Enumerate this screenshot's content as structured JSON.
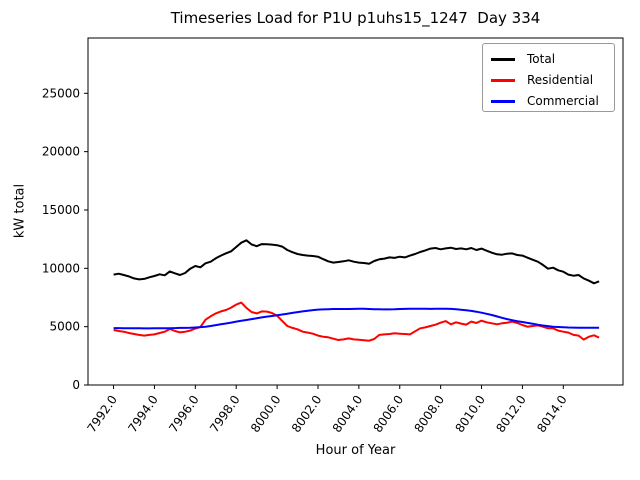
{
  "chart_data": {
    "type": "line",
    "title": "Timeseries Load for P1U p1uhs15_1247  Day 334",
    "xlabel": "Hour of Year",
    "ylabel": "kW total",
    "xlim": [
      7990.75,
      8016.92
    ],
    "ylim": [
      0,
      29740
    ],
    "grid": false,
    "legend_position": "upper right",
    "xtick_labels": [
      "7992.0",
      "7994.0",
      "7996.0",
      "7998.0",
      "8000.0",
      "8002.0",
      "8004.0",
      "8006.0",
      "8008.0",
      "8010.0",
      "8012.0",
      "8014.0"
    ],
    "ytick_labels": [
      "0",
      "5000",
      "10000",
      "15000",
      "20000",
      "25000"
    ],
    "x_start": 7992.0,
    "x_step": 0.25,
    "n_points": 96,
    "series": [
      {
        "name": "Total",
        "color": "#000000",
        "values": [
          9460,
          9540,
          9430,
          9310,
          9140,
          9050,
          9090,
          9230,
          9340,
          9490,
          9400,
          9740,
          9570,
          9430,
          9600,
          9970,
          10200,
          10090,
          10430,
          10570,
          10860,
          11090,
          11290,
          11460,
          11830,
          12200,
          12400,
          12050,
          11900,
          12080,
          12060,
          12030,
          11980,
          11860,
          11570,
          11380,
          11230,
          11140,
          11090,
          11060,
          11000,
          10790,
          10600,
          10490,
          10540,
          10600,
          10690,
          10570,
          10490,
          10460,
          10400,
          10630,
          10770,
          10830,
          10940,
          10890,
          11000,
          10940,
          11090,
          11230,
          11400,
          11540,
          11690,
          11740,
          11630,
          11710,
          11770,
          11660,
          11710,
          11630,
          11740,
          11570,
          11690,
          11510,
          11340,
          11200,
          11170,
          11250,
          11280,
          11140,
          11090,
          10910,
          10740,
          10570,
          10290,
          9970,
          10050,
          9830,
          9710,
          9460,
          9370,
          9430,
          9140,
          8940,
          8720,
          8890
        ]
      },
      {
        "name": "Residential",
        "color": "#ff0000",
        "values": [
          4710,
          4630,
          4570,
          4460,
          4370,
          4290,
          4230,
          4290,
          4340,
          4460,
          4570,
          4800,
          4630,
          4510,
          4570,
          4660,
          4830,
          4970,
          5600,
          5890,
          6140,
          6310,
          6430,
          6630,
          6890,
          7060,
          6610,
          6260,
          6140,
          6310,
          6290,
          6170,
          5940,
          5490,
          5060,
          4890,
          4770,
          4570,
          4490,
          4400,
          4230,
          4140,
          4090,
          3970,
          3860,
          3910,
          3990,
          3910,
          3870,
          3830,
          3800,
          3940,
          4290,
          4340,
          4370,
          4430,
          4400,
          4370,
          4340,
          4600,
          4860,
          4940,
          5060,
          5170,
          5340,
          5480,
          5200,
          5370,
          5260,
          5180,
          5430,
          5310,
          5510,
          5370,
          5290,
          5200,
          5290,
          5340,
          5430,
          5310,
          5140,
          5000,
          5060,
          5110,
          5000,
          4860,
          4860,
          4660,
          4570,
          4490,
          4290,
          4230,
          3890,
          4140,
          4260,
          4060
        ]
      },
      {
        "name": "Commercial",
        "color": "#0000ff",
        "values": [
          4880,
          4880,
          4870,
          4870,
          4860,
          4860,
          4850,
          4850,
          4860,
          4860,
          4870,
          4870,
          4880,
          4890,
          4890,
          4900,
          4930,
          4960,
          5000,
          5060,
          5130,
          5200,
          5270,
          5350,
          5430,
          5500,
          5570,
          5650,
          5720,
          5790,
          5860,
          5910,
          5970,
          6040,
          6110,
          6180,
          6250,
          6310,
          6370,
          6420,
          6460,
          6480,
          6500,
          6510,
          6510,
          6510,
          6510,
          6520,
          6540,
          6530,
          6510,
          6500,
          6490,
          6480,
          6480,
          6490,
          6510,
          6520,
          6530,
          6540,
          6540,
          6530,
          6520,
          6530,
          6540,
          6540,
          6520,
          6490,
          6450,
          6400,
          6350,
          6280,
          6200,
          6100,
          6000,
          5880,
          5760,
          5650,
          5550,
          5470,
          5400,
          5320,
          5250,
          5170,
          5100,
          5050,
          5000,
          4970,
          4950,
          4930,
          4920,
          4910,
          4900,
          4900,
          4900,
          4900
        ]
      }
    ]
  }
}
